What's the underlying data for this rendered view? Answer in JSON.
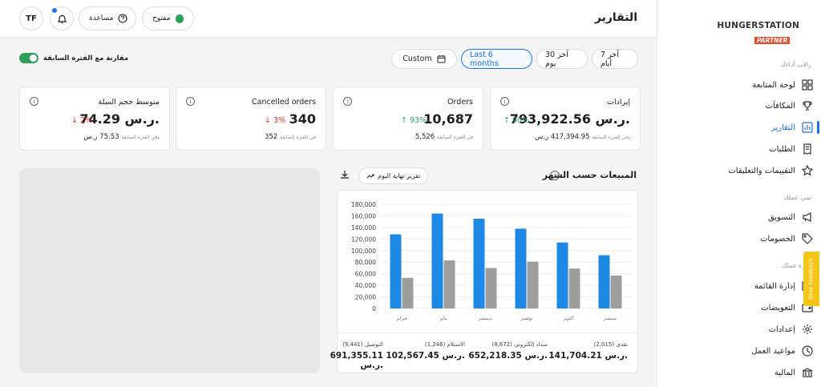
{
  "header": {
    "title": "التقارير",
    "status_label": "مفتوح",
    "help_label": "مساعدة",
    "avatar_initials": "TF"
  },
  "brand": {
    "name": "HUNGERSTATION",
    "sub": "PARTNER"
  },
  "sidebar": {
    "section1": "راقب أداءك",
    "items1": [
      "لوحة المتابعة",
      "المكافآت",
      "التقارير",
      "الطلبات",
      "التقييمات والتعليقات"
    ],
    "section2": "نمي عملك",
    "items2": [
      "التسويق",
      "الخصومات"
    ],
    "section3": "إدارة عملك",
    "items3": [
      "إدارة القائمة",
      "التعويضات",
      "إعدادات",
      "مواعيد العمل",
      "المالية"
    ],
    "active_item": "التقارير",
    "feedback_label": "Give Feedback"
  },
  "filters": {
    "compare_label": "مقارنة مع الفترة السابقة",
    "compare_on": true,
    "last7": "آخر 7 أيام",
    "last30": "آخر 30 يوم",
    "last6m": "Last 6 months",
    "custom": "Custom",
    "selected": "Last 6 months"
  },
  "cards": [
    {
      "title": "إيرادات",
      "value": "793,922.56 ر.س.",
      "delta": "90%",
      "direction": "up",
      "prev_value": "417,394.95 ر.س.",
      "prev_label": "في الفترة السابقة"
    },
    {
      "title": "Orders",
      "value": "10,687",
      "delta": "93%",
      "direction": "up",
      "prev_value": "5,526",
      "prev_label": "في الفترة السابقة"
    },
    {
      "title": "Cancelled orders",
      "value": "340",
      "delta": "3%",
      "direction": "down",
      "prev_value": "352",
      "prev_label": "في الفترة السابقة"
    },
    {
      "title": "متوسط حجم السلة",
      "value": "74.29 ر.س.",
      "delta": "2%",
      "direction": "down",
      "prev_value": "75.53 ر.س.",
      "prev_label": "في الفترة السابقة"
    }
  ],
  "sales_chart": {
    "title": "المبيعات حسب الشهر",
    "end_of_day_label": "تقرير نهاية اليوم"
  },
  "chart_data": {
    "type": "bar",
    "categories": [
      "سبتمبر",
      "أكتوبر",
      "نوفمبر",
      "ديسمبر",
      "يناير",
      "فبراير"
    ],
    "series": [
      {
        "values": [
          92000,
          114000,
          138000,
          155000,
          164000,
          128000
        ],
        "color": "#1e88e5"
      },
      {
        "values": [
          57000,
          69000,
          81000,
          70000,
          83000,
          53000
        ],
        "color": "#9e9e9e"
      }
    ],
    "ylim": [
      0,
      180000
    ],
    "yticks": [
      "0",
      "20,000",
      "40,000",
      "60,000",
      "80,000",
      "100,000",
      "120,000",
      "140,000",
      "160,000",
      "180,000"
    ],
    "grid": true
  },
  "payment_summary": [
    {
      "label": "نقدي (2,015)",
      "value": "141,704.21 ر.س."
    },
    {
      "label": "سداد إلكتروني (8,672)",
      "value": "652,218.35 ر.س."
    },
    {
      "label": "الاستلام (1,246)",
      "value": "102,567.45 ر.س."
    },
    {
      "label": "التوصيل (9,441)",
      "value": "691,355.11 ر.س."
    }
  ],
  "colors": {
    "accent": "#1a73e8",
    "success": "#2e9e5b",
    "danger": "#d93025",
    "bar_primary": "#1e88e5",
    "bar_secondary": "#9e9e9e"
  }
}
